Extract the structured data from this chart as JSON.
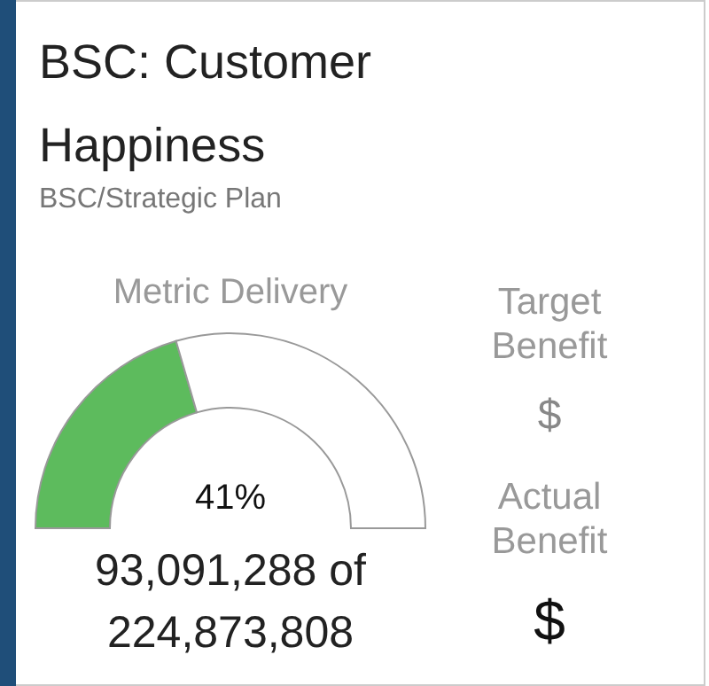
{
  "chart_data": {
    "type": "donut",
    "title": "BSC: Customer Happiness",
    "subtitle": "BSC/Strategic Plan",
    "categories": [
      null,
      null
    ],
    "values": [
      41,
      59
    ],
    "colors": [
      "#5dbb5d",
      "#ffffff"
    ],
    "legend": false,
    "annotations": [
      "Metric Delivery",
      "41%",
      "93,091,288 of 224,873,808",
      "Target Benefit",
      "$",
      "Actual Benefit",
      "$"
    ]
  }
}
